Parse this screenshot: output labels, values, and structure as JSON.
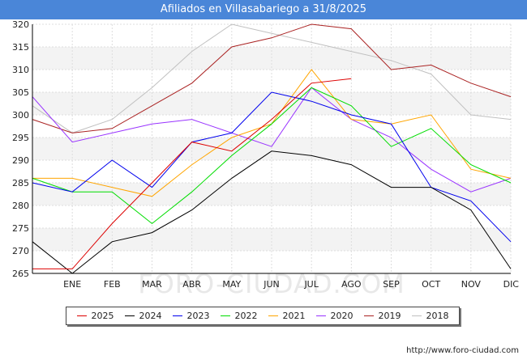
{
  "page": {
    "title": "Afiliados en Villasabariego a 31/8/2025",
    "source": "http://www.foro-ciudad.com",
    "watermark": "FORO-CIUDAD.COM"
  },
  "chart_data": {
    "type": "line",
    "title": "Afiliados en Villasabariego a 31/8/2025",
    "xlabel": "",
    "ylabel": "",
    "categories": [
      "",
      "ENE",
      "FEB",
      "MAR",
      "ABR",
      "MAY",
      "JUN",
      "JUL",
      "AGO",
      "SEP",
      "OCT",
      "NOV",
      "DIC"
    ],
    "ylim": [
      265,
      320
    ],
    "yticks": [
      265,
      270,
      275,
      280,
      285,
      290,
      295,
      300,
      305,
      310,
      315,
      320
    ],
    "grid": true,
    "legend_position": "bottom",
    "series": [
      {
        "name": "2025",
        "color": "#dd0000",
        "values": [
          266,
          266,
          276,
          285,
          294,
          292,
          299,
          307,
          308,
          null,
          null,
          null,
          null
        ]
      },
      {
        "name": "2024",
        "color": "#000000",
        "values": [
          272,
          265,
          272,
          274,
          279,
          286,
          292,
          291,
          289,
          284,
          284,
          279,
          266
        ]
      },
      {
        "name": "2023",
        "color": "#0000ee",
        "values": [
          285,
          283,
          290,
          284,
          294,
          296,
          305,
          303,
          300,
          298,
          284,
          281,
          272
        ]
      },
      {
        "name": "2022",
        "color": "#00dd00",
        "values": [
          286,
          283,
          283,
          276,
          283,
          291,
          298,
          306,
          302,
          293,
          297,
          289,
          285
        ]
      },
      {
        "name": "2021",
        "color": "#ffa500",
        "values": [
          286,
          286,
          284,
          282,
          289,
          295,
          298,
          310,
          299,
          298,
          300,
          288,
          286
        ]
      },
      {
        "name": "2020",
        "color": "#9933ff",
        "values": [
          304,
          294,
          296,
          298,
          299,
          296,
          293,
          306,
          299,
          295,
          288,
          283,
          286
        ]
      },
      {
        "name": "2019",
        "color": "#aa2222",
        "values": [
          299,
          296,
          297,
          302,
          307,
          315,
          317,
          320,
          319,
          310,
          311,
          307,
          304
        ]
      },
      {
        "name": "2018",
        "color": "#c0c0c0",
        "values": [
          302,
          296,
          299,
          306,
          314,
          320,
          318,
          316,
          314,
          312,
          309,
          300,
          299
        ]
      }
    ]
  }
}
